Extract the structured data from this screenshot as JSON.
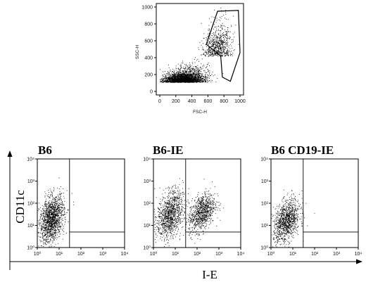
{
  "chart_data": [
    {
      "type": "scatter",
      "title": "",
      "xlabel": "FSC-H",
      "ylabel": "SSC-H",
      "xlim": [
        0,
        1000
      ],
      "ylim": [
        0,
        1000
      ],
      "xticks": [
        "0",
        "200",
        "400",
        "600",
        "800",
        "1000"
      ],
      "yticks": [
        "0",
        "200",
        "400",
        "600",
        "800",
        "1000"
      ],
      "gate": {
        "polygon": [
          [
            580,
            560
          ],
          [
            720,
            950
          ],
          [
            980,
            960
          ],
          [
            1000,
            460
          ],
          [
            880,
            120
          ],
          [
            780,
            170
          ],
          [
            760,
            420
          ]
        ]
      },
      "populations": [
        {
          "x_center": 300,
          "y_center": 110,
          "x_spread": 230,
          "y_spread": 120,
          "count": 2600
        },
        {
          "x_center": 720,
          "y_center": 420,
          "x_spread": 160,
          "y_spread": 220,
          "count": 700
        }
      ]
    },
    {
      "type": "scatter",
      "title": "B6",
      "xlabel": "I-E",
      "ylabel": "CD11c",
      "xscale": "log",
      "yscale": "log",
      "xlim": [
        1,
        10000
      ],
      "ylim": [
        1,
        10000
      ],
      "xticks": [
        "10⁰",
        "10¹",
        "10²",
        "10³",
        "10⁴"
      ],
      "yticks": [
        "10⁰",
        "10¹",
        "10²",
        "10³",
        "10⁴"
      ],
      "quadrant": {
        "x": 30,
        "y": 5
      },
      "populations": [
        {
          "log_x": 0.65,
          "log_y": 1.3,
          "sd_x": 0.28,
          "sd_y": 0.5,
          "count": 1500
        }
      ]
    },
    {
      "type": "scatter",
      "title": "B6-IE",
      "xlabel": "I-E",
      "ylabel": "CD11c",
      "xscale": "log",
      "yscale": "log",
      "xlim": [
        1,
        10000
      ],
      "ylim": [
        1,
        10000
      ],
      "xticks": [
        "10⁰",
        "10¹",
        "10²",
        "10³",
        "10⁴"
      ],
      "yticks": [
        "10⁰",
        "10¹",
        "10²",
        "10³",
        "10⁴"
      ],
      "quadrant": {
        "x": 30,
        "y": 5
      },
      "populations": [
        {
          "log_x": 0.75,
          "log_y": 1.5,
          "sd_x": 0.3,
          "sd_y": 0.5,
          "count": 1100
        },
        {
          "log_x": 2.2,
          "log_y": 1.6,
          "sd_x": 0.3,
          "sd_y": 0.4,
          "count": 900
        }
      ]
    },
    {
      "type": "scatter",
      "title": "B6 CD19-IE",
      "xlabel": "I-E",
      "ylabel": "CD11c",
      "xscale": "log",
      "yscale": "log",
      "xlim": [
        1,
        10000
      ],
      "ylim": [
        1,
        10000
      ],
      "xticks": [
        "10⁰",
        "10¹",
        "10²",
        "10³",
        "10⁴"
      ],
      "yticks": [
        "10⁰",
        "10¹",
        "10²",
        "10³",
        "10⁴"
      ],
      "quadrant": {
        "x": 30,
        "y": 5
      },
      "populations": [
        {
          "log_x": 0.7,
          "log_y": 1.2,
          "sd_x": 0.3,
          "sd_y": 0.45,
          "count": 1100
        }
      ]
    }
  ],
  "shared_axis": {
    "ylabel": "CD11c",
    "xlabel": "I-E"
  }
}
